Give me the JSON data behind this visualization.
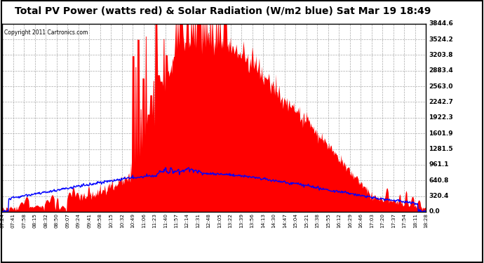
{
  "title": "Total PV Power (watts red) & Solar Radiation (W/m2 blue) Sat Mar 19 18:49",
  "copyright": "Copyright 2011 Cartronics.com",
  "title_fontsize": 10,
  "background_color": "#ffffff",
  "plot_bg_color": "#ffffff",
  "grid_color": "#aaaaaa",
  "ytick_labels": [
    "0.0",
    "320.4",
    "640.8",
    "961.1",
    "1281.5",
    "1601.9",
    "1922.3",
    "2242.7",
    "2563.0",
    "2883.4",
    "3203.8",
    "3524.2",
    "3844.6"
  ],
  "ytick_values": [
    0.0,
    320.4,
    640.8,
    961.1,
    1281.5,
    1601.9,
    1922.3,
    2242.7,
    2563.0,
    2883.4,
    3203.8,
    3524.2,
    3844.6
  ],
  "ymax": 3844.6,
  "ymin": 0.0,
  "pv_color": "#ff0000",
  "solar_color": "#0000ff",
  "x_labels": [
    "07:24",
    "07:41",
    "07:58",
    "08:15",
    "08:32",
    "08:50",
    "09:07",
    "09:24",
    "09:41",
    "09:58",
    "10:15",
    "10:32",
    "10:49",
    "11:06",
    "11:23",
    "11:40",
    "11:57",
    "12:14",
    "12:31",
    "12:48",
    "13:05",
    "13:22",
    "13:39",
    "13:56",
    "14:13",
    "14:30",
    "14:47",
    "15:04",
    "15:21",
    "15:38",
    "15:55",
    "16:12",
    "16:29",
    "16:46",
    "17:03",
    "17:20",
    "17:37",
    "17:54",
    "18:11",
    "18:28"
  ]
}
